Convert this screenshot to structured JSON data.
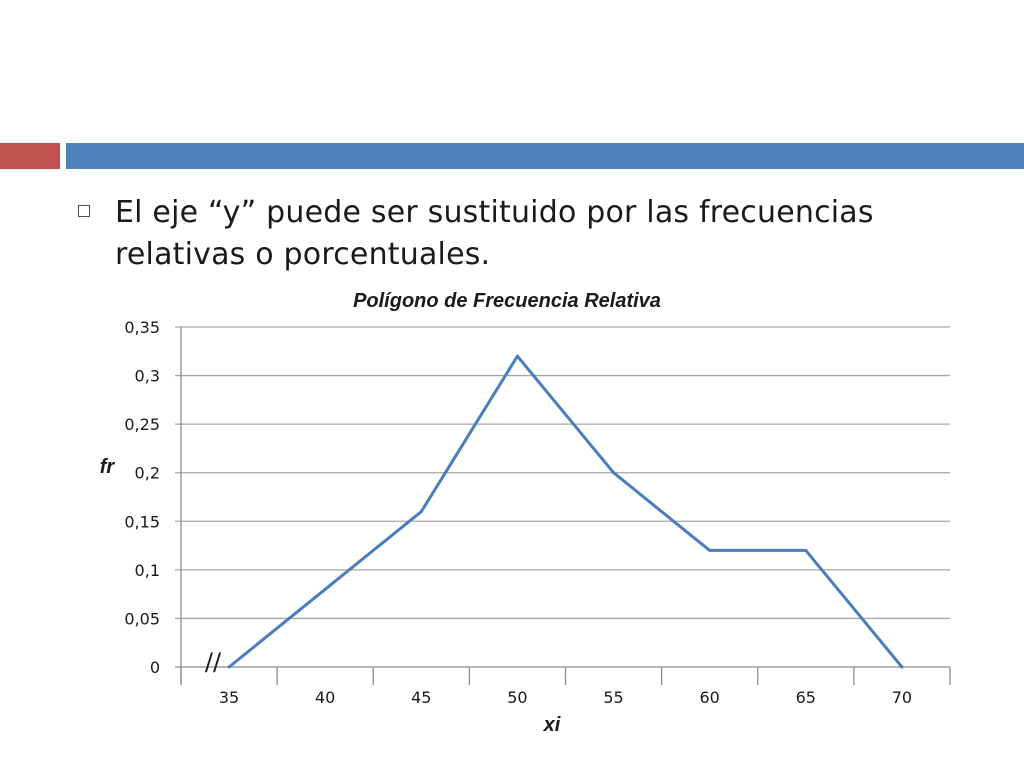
{
  "header": {
    "bar_colors": {
      "left": "#c0504d",
      "right": "#4f81bd"
    }
  },
  "bullet": {
    "icon": "square-bullet-icon",
    "text": "El eje “y” puede ser sustituido por las frecuencias relativas o porcentuales."
  },
  "chart_data": {
    "type": "line",
    "title": "Polígono de Frecuencia Relativa",
    "xlabel": "xi",
    "ylabel": "fr",
    "categories": [
      "35",
      "40",
      "45",
      "50",
      "55",
      "60",
      "65",
      "70"
    ],
    "series": [
      {
        "name": "fr",
        "values": [
          0,
          0.08,
          0.16,
          0.32,
          0.2,
          0.12,
          0.12,
          0
        ],
        "color": "#4a7ebb"
      }
    ],
    "ylim": [
      0,
      0.35
    ],
    "yticks": [
      "0",
      "0,05",
      "0,1",
      "0,15",
      "0,2",
      "0,25",
      "0,3",
      "0,35"
    ],
    "axis_break_mark": "//",
    "grid": true,
    "legend": "none"
  }
}
